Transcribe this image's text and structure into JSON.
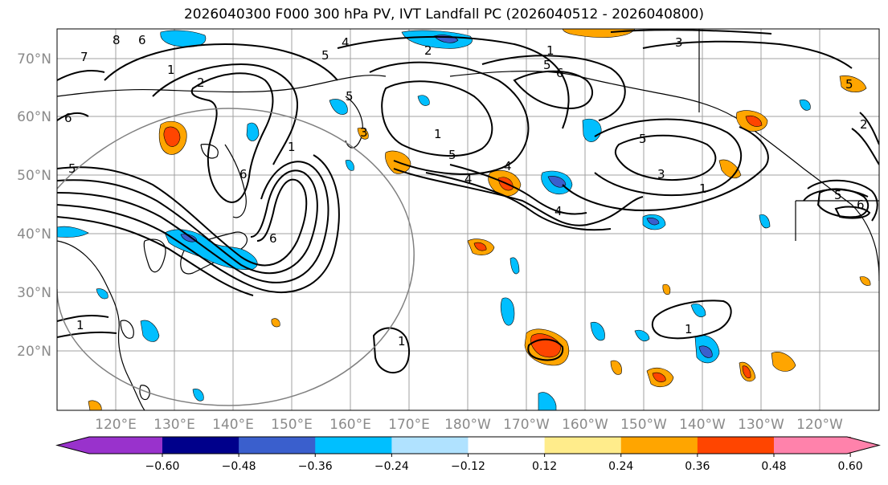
{
  "title": "2026040300 F000 300 hPa PV, IVT Landfall PC (2026040512 - 2026040800)",
  "map": {
    "lat_labels": [
      "70°N",
      "60°N",
      "50°N",
      "40°N",
      "30°N",
      "20°N"
    ],
    "lon_labels": [
      "120°E",
      "130°E",
      "140°E",
      "150°E",
      "160°E",
      "170°E",
      "180°W",
      "170°W",
      "160°W",
      "150°W",
      "140°W",
      "130°W",
      "120°W"
    ],
    "contour_labels": [
      {
        "text": "7",
        "id": "a"
      },
      {
        "text": "8",
        "id": "b"
      },
      {
        "text": "6",
        "id": "c"
      },
      {
        "text": "5",
        "id": "d"
      },
      {
        "text": "4",
        "id": "e"
      },
      {
        "text": "2",
        "id": "f"
      },
      {
        "text": "2",
        "id": "g"
      },
      {
        "text": "1",
        "id": "h"
      },
      {
        "text": "3",
        "id": "i"
      },
      {
        "text": "4",
        "id": "j"
      },
      {
        "text": "5",
        "id": "k"
      },
      {
        "text": "6",
        "id": "l"
      },
      {
        "text": "5",
        "id": "m"
      },
      {
        "text": "6",
        "id": "n"
      },
      {
        "text": "1",
        "id": "o"
      },
      {
        "text": "5",
        "id": "p"
      },
      {
        "text": "6",
        "id": "q"
      },
      {
        "text": "1",
        "id": "r"
      },
      {
        "text": "5",
        "id": "s"
      },
      {
        "text": "4",
        "id": "t"
      },
      {
        "text": "1",
        "id": "u"
      },
      {
        "text": "5",
        "id": "v"
      },
      {
        "text": "6",
        "id": "w"
      },
      {
        "text": "4",
        "id": "x"
      },
      {
        "text": "3",
        "id": "y"
      },
      {
        "text": "1",
        "id": "z"
      },
      {
        "text": "5",
        "id": "aa"
      },
      {
        "text": "6",
        "id": "ab"
      },
      {
        "text": "1",
        "id": "ac"
      },
      {
        "text": "1",
        "id": "ad"
      },
      {
        "text": "1",
        "id": "ae"
      },
      {
        "text": "2",
        "id": "af"
      },
      {
        "text": "5",
        "id": "ag"
      },
      {
        "text": "3",
        "id": "ah"
      }
    ]
  },
  "colorbar": {
    "colors": [
      "#9932cc",
      "#00008b",
      "#3a5fcd",
      "#00bfff",
      "#b0e2ff",
      "#ffffff",
      "#ffec8b",
      "#ffa500",
      "#ff4500",
      "#b22222",
      "#ff82ab"
    ],
    "ticks": [
      "−0.60",
      "−0.48",
      "−0.36",
      "−0.24",
      "−0.12",
      "0.12",
      "0.24",
      "0.36",
      "0.48",
      "0.60"
    ]
  }
}
